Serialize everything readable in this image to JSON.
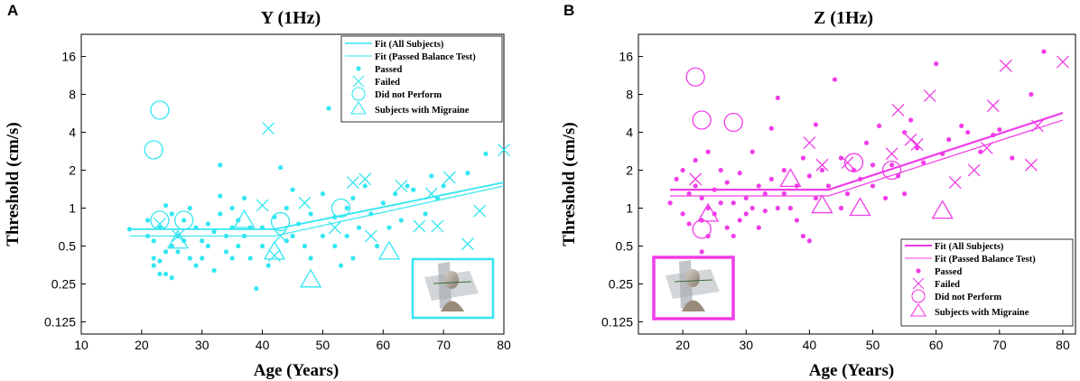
{
  "chart_data": [
    {
      "type": "scatter",
      "panel_label": "A",
      "title": "Y (1Hz)",
      "xlabel": "Age (Years)",
      "ylabel": "Threshold (cm/s)",
      "color": "#33e6f2",
      "xscale": "linear",
      "yscale": "log2",
      "xlim": [
        10,
        80
      ],
      "ylim": [
        0.1,
        24
      ],
      "xticks": [
        10,
        20,
        30,
        40,
        50,
        60,
        70,
        80
      ],
      "yticks": [
        0.125,
        0.25,
        0.5,
        1,
        2,
        4,
        8,
        16
      ],
      "ytick_labels": [
        "0.125",
        "0.25",
        "0.5",
        "1",
        "2",
        "4",
        "8",
        "16"
      ],
      "legend": {
        "position": "top-right",
        "entries": [
          "Fit (All Subjects)",
          "Fit (Passed Balance Test)",
          "Passed",
          "Failed",
          "Did not Perform",
          "Subjects with Migraine"
        ]
      },
      "fits": [
        {
          "name": "Fit (All Subjects)",
          "x": [
            18,
            42,
            80
          ],
          "y": [
            0.68,
            0.68,
            1.6
          ]
        },
        {
          "name": "Fit (Passed Balance Test)",
          "x": [
            18,
            42,
            80
          ],
          "y": [
            0.6,
            0.6,
            1.5
          ]
        }
      ],
      "passed": [
        [
          18,
          0.68
        ],
        [
          21,
          0.8
        ],
        [
          21,
          0.6
        ],
        [
          22,
          0.4
        ],
        [
          22,
          0.35
        ],
        [
          22,
          0.55
        ],
        [
          23,
          0.7
        ],
        [
          23,
          0.3
        ],
        [
          23,
          0.38
        ],
        [
          24,
          1.05
        ],
        [
          24,
          0.45
        ],
        [
          24,
          0.3
        ],
        [
          25,
          0.9
        ],
        [
          25,
          0.5
        ],
        [
          25,
          0.28
        ],
        [
          26,
          0.6
        ],
        [
          26,
          0.45
        ],
        [
          27,
          0.8
        ],
        [
          27,
          0.55
        ],
        [
          28,
          1.0
        ],
        [
          28,
          0.4
        ],
        [
          29,
          0.7
        ],
        [
          29,
          0.35
        ],
        [
          30,
          0.55
        ],
        [
          30,
          0.4
        ],
        [
          31,
          0.75
        ],
        [
          31,
          0.5
        ],
        [
          32,
          0.65
        ],
        [
          32,
          0.32
        ],
        [
          33,
          2.2
        ],
        [
          33,
          0.9
        ],
        [
          33,
          1.25
        ],
        [
          34,
          0.6
        ],
        [
          34,
          0.45
        ],
        [
          35,
          1.0
        ],
        [
          35,
          0.7
        ],
        [
          35,
          0.4
        ],
        [
          36,
          0.8
        ],
        [
          36,
          0.5
        ],
        [
          37,
          1.2
        ],
        [
          37,
          0.6
        ],
        [
          38,
          0.7
        ],
        [
          38,
          0.4
        ],
        [
          39,
          0.23
        ],
        [
          40,
          0.5
        ],
        [
          40,
          0.7
        ],
        [
          41,
          0.35
        ],
        [
          42,
          0.85
        ],
        [
          43,
          2.1
        ],
        [
          44,
          1.0
        ],
        [
          44,
          0.55
        ],
        [
          45,
          0.6
        ],
        [
          45,
          1.4
        ],
        [
          46,
          0.75
        ],
        [
          47,
          0.5
        ],
        [
          48,
          0.9
        ],
        [
          48,
          0.4
        ],
        [
          50,
          0.6
        ],
        [
          50,
          1.3
        ],
        [
          51,
          6.2
        ],
        [
          52,
          0.5
        ],
        [
          52,
          0.85
        ],
        [
          53,
          0.35
        ],
        [
          54,
          1.0
        ],
        [
          54,
          0.6
        ],
        [
          55,
          1.2
        ],
        [
          55,
          0.4
        ],
        [
          56,
          0.7
        ],
        [
          57,
          1.5
        ],
        [
          58,
          0.9
        ],
        [
          59,
          0.5
        ],
        [
          60,
          1.1
        ],
        [
          61,
          0.7
        ],
        [
          62,
          1.3
        ],
        [
          63,
          0.8
        ],
        [
          64,
          1.5
        ],
        [
          65,
          1.4
        ],
        [
          67,
          0.9
        ],
        [
          68,
          1.8
        ],
        [
          69,
          1.2
        ],
        [
          70,
          1.5
        ],
        [
          74,
          1.9
        ],
        [
          77,
          2.7
        ]
      ],
      "failed": [
        [
          23,
          0.75
        ],
        [
          26,
          0.6
        ],
        [
          40,
          1.05
        ],
        [
          41,
          4.3
        ],
        [
          42,
          0.42
        ],
        [
          43,
          0.6
        ],
        [
          47,
          1.1
        ],
        [
          52,
          0.7
        ],
        [
          55,
          1.6
        ],
        [
          57,
          1.7
        ],
        [
          58,
          0.6
        ],
        [
          63,
          1.5
        ],
        [
          66,
          0.72
        ],
        [
          68,
          1.3
        ],
        [
          69,
          0.72
        ],
        [
          71,
          1.75
        ],
        [
          74,
          0.52
        ],
        [
          76,
          0.95
        ],
        [
          80,
          2.9
        ]
      ],
      "did_not_perform": [
        [
          22,
          2.9
        ],
        [
          23,
          6.0
        ],
        [
          23,
          0.8
        ],
        [
          27,
          0.8
        ],
        [
          43,
          0.78
        ],
        [
          53,
          1.0
        ]
      ],
      "migraine": [
        [
          26,
          0.55
        ],
        [
          37,
          0.8
        ],
        [
          42,
          0.45
        ],
        [
          48,
          0.27
        ],
        [
          61,
          0.45
        ]
      ],
      "inset": "head-axes-illustration"
    },
    {
      "type": "scatter",
      "panel_label": "B",
      "title": "Z (1Hz)",
      "xlabel": "Age (Years)",
      "ylabel": "Threshold (cm/s)",
      "color": "#f03ce8",
      "xscale": "linear",
      "yscale": "log2",
      "xlim": [
        13,
        82
      ],
      "ylim": [
        0.1,
        24
      ],
      "xticks": [
        20,
        30,
        40,
        50,
        60,
        70,
        80
      ],
      "yticks": [
        0.125,
        0.25,
        0.5,
        1,
        2,
        4,
        8,
        16
      ],
      "ytick_labels": [
        "0.125",
        "0.25",
        "0.5",
        "1",
        "2",
        "4",
        "8",
        "16"
      ],
      "legend": {
        "position": "bottom-right",
        "entries": [
          "Fit (All Subjects)",
          "Fit (Passed Balance Test)",
          "Passed",
          "Failed",
          "Did not Perform",
          "Subjects with Migraine"
        ]
      },
      "fits": [
        {
          "name": "Fit (All Subjects)",
          "x": [
            18,
            43,
            80
          ],
          "y": [
            1.4,
            1.4,
            5.7
          ]
        },
        {
          "name": "Fit (Passed Balance Test)",
          "x": [
            18,
            43,
            80
          ],
          "y": [
            1.25,
            1.25,
            5.0
          ]
        }
      ],
      "passed": [
        [
          18,
          1.1
        ],
        [
          19,
          1.7
        ],
        [
          20,
          2.0
        ],
        [
          20,
          0.9
        ],
        [
          21,
          1.3
        ],
        [
          21,
          0.75
        ],
        [
          22,
          2.4
        ],
        [
          22,
          1.5
        ],
        [
          23,
          1.2
        ],
        [
          23,
          0.8
        ],
        [
          23,
          0.45
        ],
        [
          24,
          2.8
        ],
        [
          24,
          1.0
        ],
        [
          24,
          0.6
        ],
        [
          25,
          1.4
        ],
        [
          25,
          0.9
        ],
        [
          26,
          2.0
        ],
        [
          26,
          1.1
        ],
        [
          27,
          1.6
        ],
        [
          27,
          0.7
        ],
        [
          28,
          1.1
        ],
        [
          28,
          0.6
        ],
        [
          29,
          1.9
        ],
        [
          29,
          0.8
        ],
        [
          30,
          1.2
        ],
        [
          30,
          0.9
        ],
        [
          31,
          2.8
        ],
        [
          31,
          1.0
        ],
        [
          32,
          1.5
        ],
        [
          32,
          0.7
        ],
        [
          33,
          1.3
        ],
        [
          33,
          0.95
        ],
        [
          34,
          4.3
        ],
        [
          34,
          1.7
        ],
        [
          35,
          7.5
        ],
        [
          35,
          1.0
        ],
        [
          36,
          2.0
        ],
        [
          36,
          1.3
        ],
        [
          37,
          1.0
        ],
        [
          38,
          0.8
        ],
        [
          38,
          1.5
        ],
        [
          39,
          2.5
        ],
        [
          39,
          0.6
        ],
        [
          40,
          0.55
        ],
        [
          40,
          1.8
        ],
        [
          41,
          1.2
        ],
        [
          41,
          4.6
        ],
        [
          42,
          2.0
        ],
        [
          43,
          1.5
        ],
        [
          44,
          10.5
        ],
        [
          45,
          1.0
        ],
        [
          45,
          2.5
        ],
        [
          46,
          1.3
        ],
        [
          47,
          2.0
        ],
        [
          48,
          1.7
        ],
        [
          49,
          3.3
        ],
        [
          50,
          2.2
        ],
        [
          50,
          1.5
        ],
        [
          51,
          4.5
        ],
        [
          52,
          1.2
        ],
        [
          53,
          2.2
        ],
        [
          54,
          1.8
        ],
        [
          55,
          1.3
        ],
        [
          55,
          4.0
        ],
        [
          56,
          5.0
        ],
        [
          57,
          3.0
        ],
        [
          58,
          2.3
        ],
        [
          60,
          14.0
        ],
        [
          61,
          2.7
        ],
        [
          62,
          3.5
        ],
        [
          64,
          4.5
        ],
        [
          65,
          4.0
        ],
        [
          67,
          2.8
        ],
        [
          69,
          3.8
        ],
        [
          70,
          4.2
        ],
        [
          72,
          2.5
        ],
        [
          75,
          8.0
        ],
        [
          77,
          17.5
        ]
      ],
      "failed": [
        [
          22,
          1.7
        ],
        [
          40,
          3.3
        ],
        [
          42,
          2.2
        ],
        [
          46,
          2.3
        ],
        [
          53,
          2.7
        ],
        [
          54,
          6.0
        ],
        [
          56,
          3.5
        ],
        [
          57,
          3.2
        ],
        [
          59,
          7.8
        ],
        [
          63,
          1.6
        ],
        [
          66,
          2.0
        ],
        [
          68,
          3.0
        ],
        [
          69,
          6.5
        ],
        [
          71,
          13.5
        ],
        [
          75,
          2.2
        ],
        [
          76,
          4.5
        ],
        [
          80,
          14.5
        ]
      ],
      "did_not_perform": [
        [
          22,
          11.0
        ],
        [
          23,
          5.0
        ],
        [
          28,
          4.8
        ],
        [
          23,
          0.68
        ],
        [
          47,
          2.3
        ],
        [
          53,
          2.0
        ]
      ],
      "migraine": [
        [
          24,
          0.9
        ],
        [
          37,
          1.7
        ],
        [
          42,
          1.05
        ],
        [
          48,
          1.0
        ],
        [
          61,
          0.95
        ]
      ],
      "inset": "head-axes-illustration"
    }
  ]
}
